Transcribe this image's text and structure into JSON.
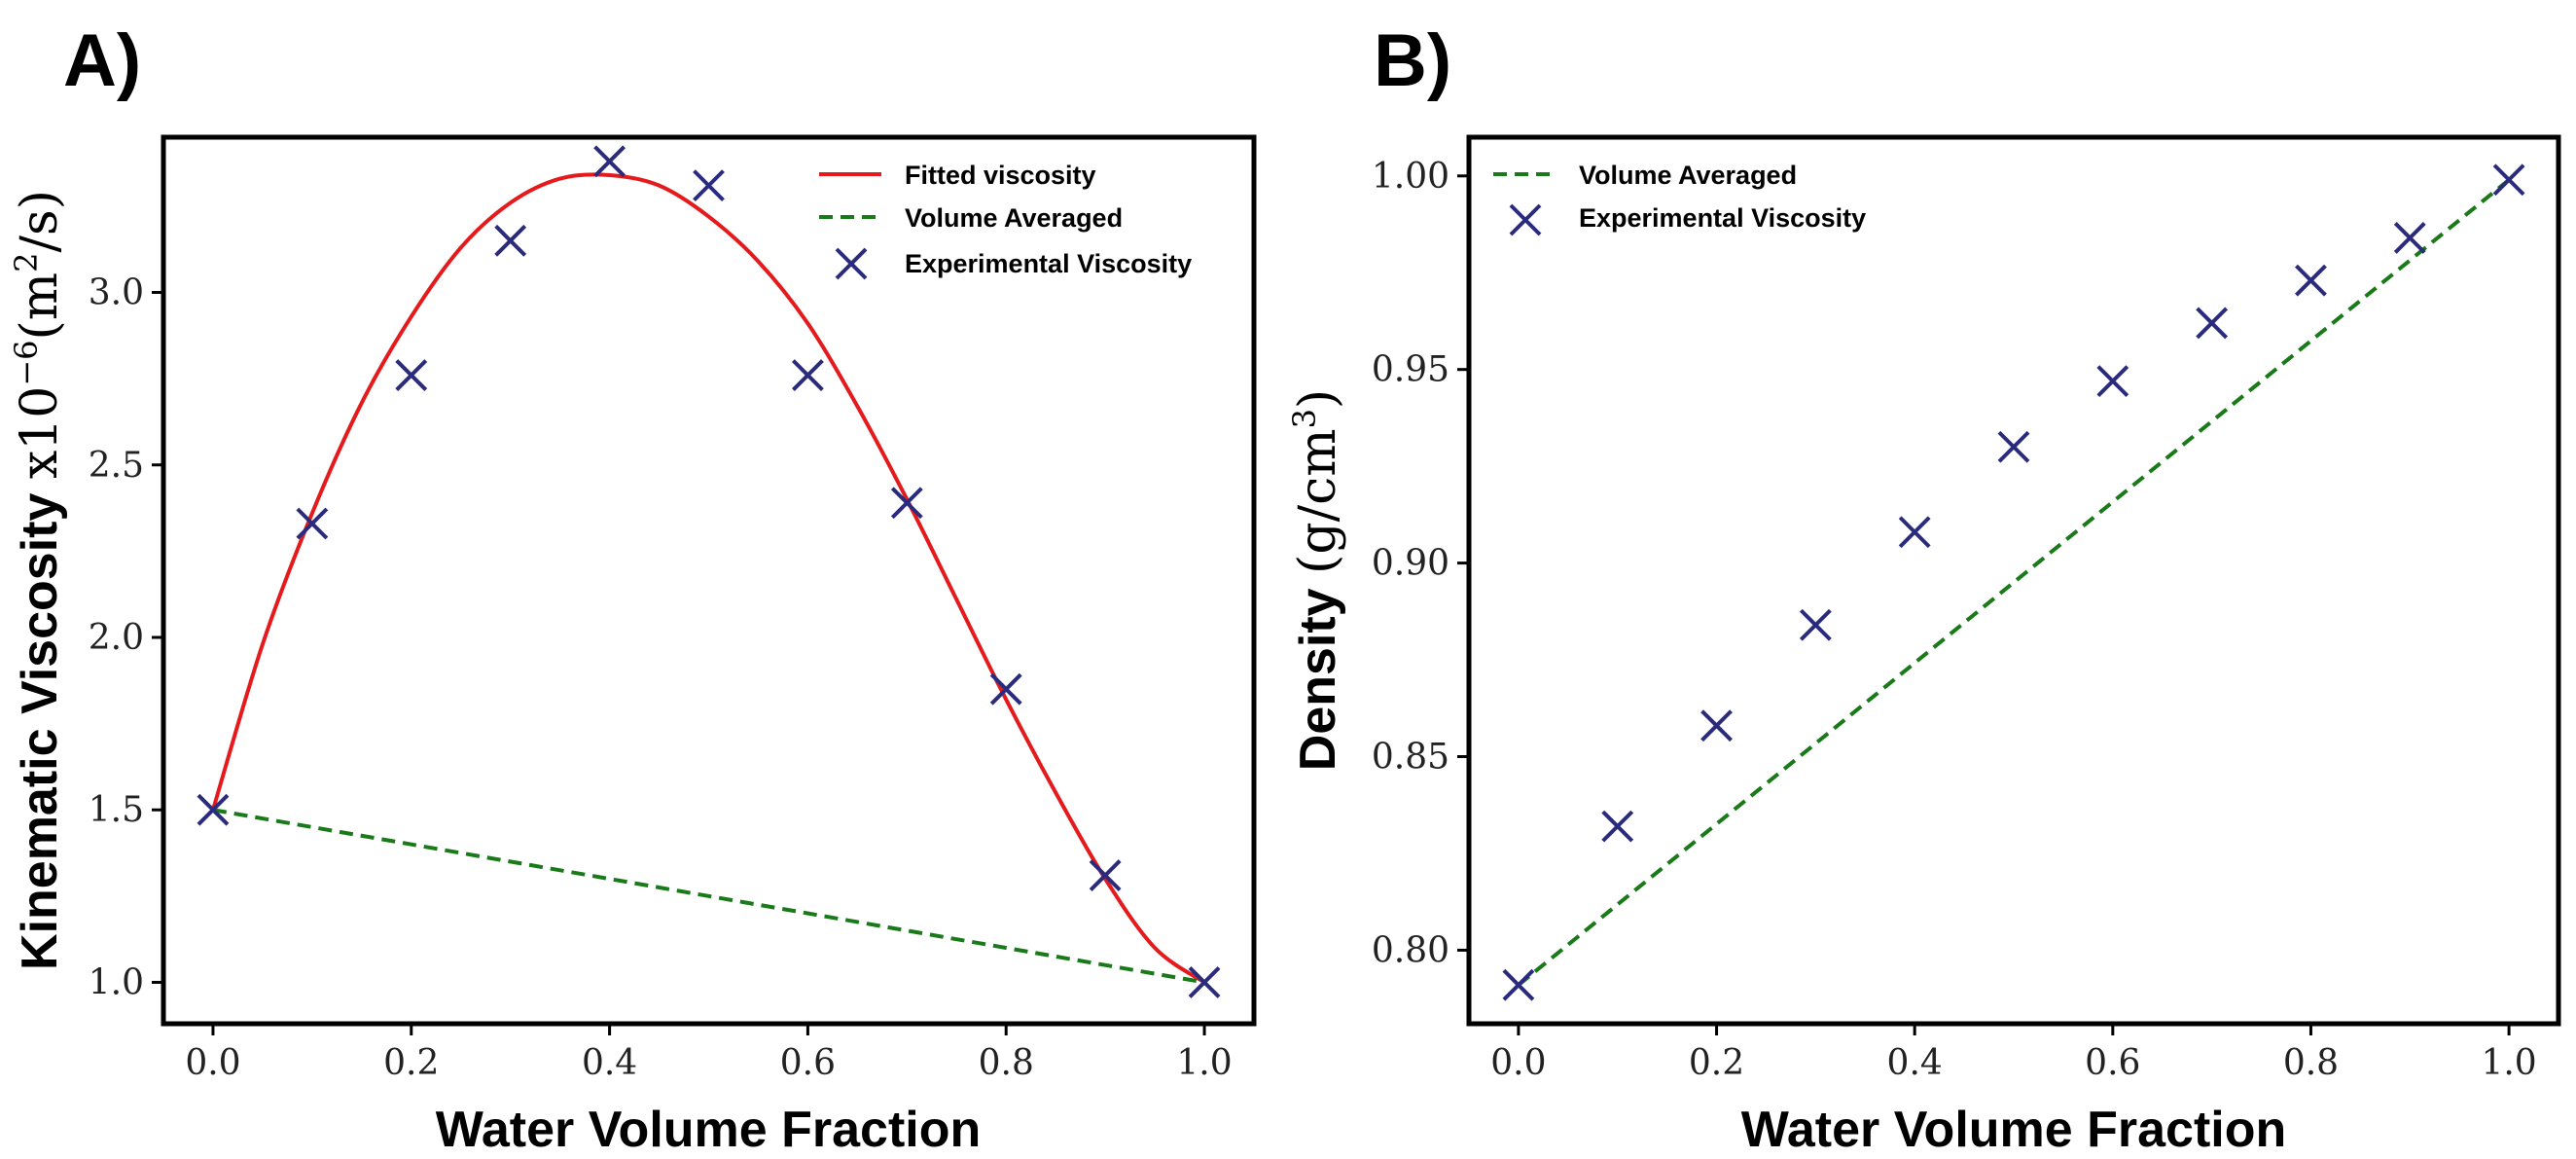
{
  "chart_data": [
    {
      "panel_label": "A)",
      "type": "line",
      "xlabel": "Water Volume Fraction",
      "ylabel_main": "Kinematic Viscosity ",
      "ylabel_scale": "x10",
      "ylabel_exp": "−6",
      "ylabel_units_open": "(m",
      "ylabel_units_sup": "2",
      "ylabel_units_close": "/s)",
      "xlim": [
        -0.05,
        1.05
      ],
      "ylim": [
        0.88,
        3.45
      ],
      "xticks": [
        "0.0",
        "0.2",
        "0.4",
        "0.6",
        "0.8",
        "1.0"
      ],
      "yticks": [
        "1.0",
        "1.5",
        "2.0",
        "2.5",
        "3.0"
      ],
      "legend_position": "top-right",
      "series": [
        {
          "name": "Fitted viscosity",
          "kind": "fit-curve",
          "color": "#e41a1c",
          "style": "solid",
          "x": [
            0.0,
            0.05,
            0.1,
            0.15,
            0.2,
            0.25,
            0.3,
            0.35,
            0.4,
            0.45,
            0.5,
            0.55,
            0.6,
            0.65,
            0.7,
            0.75,
            0.8,
            0.85,
            0.9,
            0.95,
            1.0
          ],
          "y": [
            1.5,
            1.98,
            2.36,
            2.68,
            2.93,
            3.13,
            3.26,
            3.33,
            3.34,
            3.31,
            3.22,
            3.09,
            2.91,
            2.67,
            2.4,
            2.11,
            1.82,
            1.55,
            1.3,
            1.1,
            1.0
          ]
        },
        {
          "name": "Volume Averaged",
          "kind": "dashed-line",
          "color": "#1a7a1a",
          "style": "dashed",
          "x": [
            0.0,
            1.0
          ],
          "y": [
            1.5,
            1.0
          ]
        },
        {
          "name": "Experimental Viscosity",
          "kind": "markers",
          "color": "#2b2b7e",
          "marker": "x",
          "x": [
            0.0,
            0.1,
            0.2,
            0.3,
            0.4,
            0.5,
            0.6,
            0.7,
            0.8,
            0.9,
            1.0
          ],
          "y": [
            1.5,
            2.33,
            2.76,
            3.15,
            3.38,
            3.31,
            2.76,
            2.39,
            1.85,
            1.31,
            1.0
          ]
        }
      ]
    },
    {
      "panel_label": "B)",
      "type": "line",
      "xlabel": "Water Volume Fraction",
      "ylabel_main": "Density ",
      "ylabel_units_open": "(g/cm",
      "ylabel_units_sup": "3",
      "ylabel_units_close": ")",
      "xlim": [
        -0.05,
        1.05
      ],
      "ylim": [
        0.781,
        1.01
      ],
      "xticks": [
        "0.0",
        "0.2",
        "0.4",
        "0.6",
        "0.8",
        "1.0"
      ],
      "yticks": [
        "0.80",
        "0.85",
        "0.90",
        "0.95",
        "1.00"
      ],
      "legend_position": "top-left",
      "series": [
        {
          "name": "Volume Averaged",
          "kind": "dashed-line",
          "color": "#1a7a1a",
          "style": "dashed",
          "x": [
            0.0,
            1.0
          ],
          "y": [
            0.791,
            0.999
          ]
        },
        {
          "name": "Experimental Viscosity",
          "kind": "markers",
          "color": "#2b2b7e",
          "marker": "x",
          "x": [
            0.0,
            0.1,
            0.2,
            0.3,
            0.4,
            0.5,
            0.6,
            0.7,
            0.8,
            0.9,
            1.0
          ],
          "y": [
            0.791,
            0.832,
            0.858,
            0.884,
            0.908,
            0.93,
            0.947,
            0.962,
            0.973,
            0.984,
            0.999
          ]
        }
      ]
    }
  ]
}
